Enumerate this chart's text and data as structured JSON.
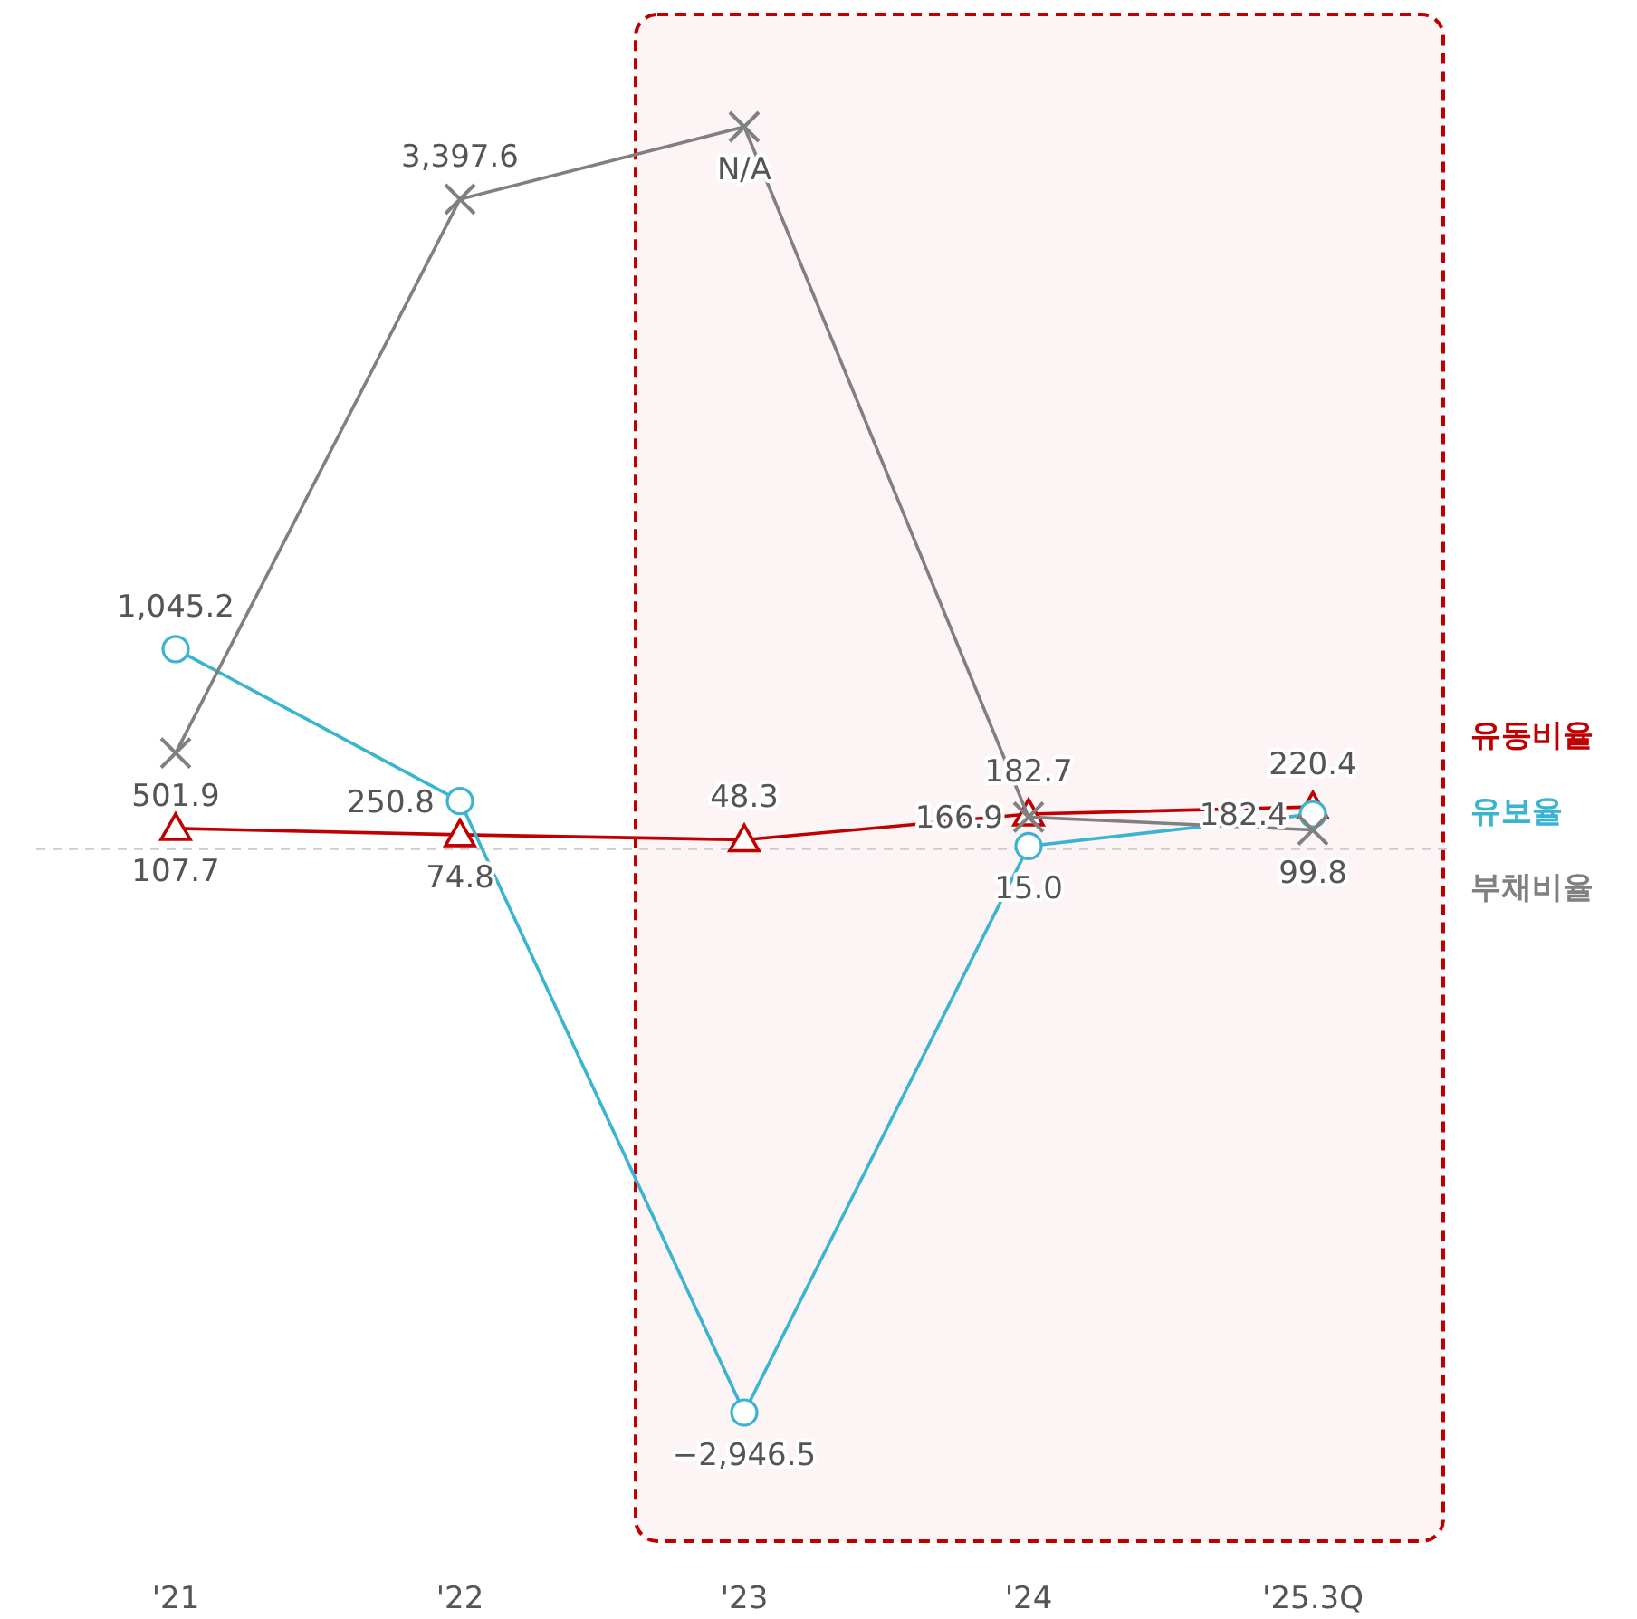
{
  "chart_data": {
    "type": "line",
    "categories": [
      "'21",
      "'22",
      "'23",
      "'24",
      "'25.3Q"
    ],
    "series": [
      {
        "name": "유동비율",
        "color": "#c00000",
        "marker": "triangle",
        "values": [
          107.7,
          74.8,
          48.3,
          182.7,
          220.4
        ],
        "value_labels": [
          "107.7",
          "74.8",
          "48.3",
          "182.7",
          "220.4"
        ]
      },
      {
        "name": "유보율",
        "color": "#3ab4d0",
        "marker": "circle",
        "values": [
          1045.2,
          250.8,
          -2946.5,
          15.0,
          182.4
        ],
        "value_labels": [
          "1,045.2",
          "250.8",
          "−2,946.5",
          "15.0",
          "182.4"
        ]
      },
      {
        "name": "부채비율",
        "color": "#808080",
        "marker": "cross",
        "values": [
          501.9,
          3397.6,
          null,
          166.9,
          99.8
        ],
        "value_labels": [
          "501.9",
          "3,397.6",
          "N/A",
          "166.9",
          "99.8"
        ]
      }
    ],
    "legend": "right",
    "ref_lines": [
      {
        "axis": "y",
        "value": 0,
        "color": "#cccccc",
        "line_style": "dashed"
      }
    ],
    "bands": [
      {
        "axis": "x",
        "from": "'23",
        "to": "'25.3Q",
        "color": "#c00000"
      }
    ]
  }
}
